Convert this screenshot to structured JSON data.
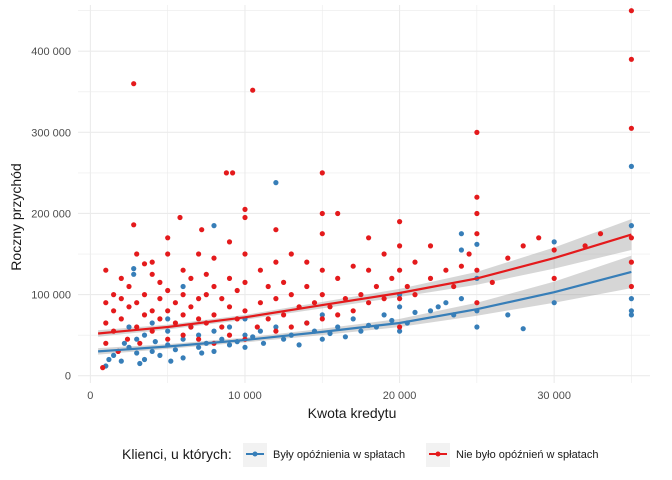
{
  "chart_data": {
    "type": "scatter",
    "xlabel": "Kwota kredytu",
    "ylabel": "Roczny przychód",
    "xlim": [
      -800,
      36200
    ],
    "ylim": [
      -9000,
      457000
    ],
    "x_ticks": [
      0,
      10000,
      20000,
      30000
    ],
    "x_tick_labels": [
      "0",
      "10 000",
      "20 000",
      "30 000"
    ],
    "y_ticks": [
      0,
      100000,
      200000,
      300000,
      400000
    ],
    "y_tick_labels": [
      "0",
      "100 000",
      "200 000",
      "300 000",
      "400 000"
    ],
    "grid": true,
    "legend": {
      "title": "Klienci, u których:",
      "position": "bottom",
      "entries": [
        "Były opóźnienia w spłatach",
        "Nie było opóźnień w spłatach"
      ]
    },
    "colors": {
      "delayed": "#377EB8",
      "no_delay": "#E41A1C",
      "band": "#999999",
      "grid": "#ebebeb"
    },
    "series": [
      {
        "name": "Były opóźnienia w spłatach",
        "color": "#377EB8",
        "points": [
          [
            1000,
            12000
          ],
          [
            1200,
            20000
          ],
          [
            1500,
            25000
          ],
          [
            1800,
            30000
          ],
          [
            2000,
            18000
          ],
          [
            2200,
            40000
          ],
          [
            2500,
            35000
          ],
          [
            2500,
            60000
          ],
          [
            2800,
            125000
          ],
          [
            2800,
            132000
          ],
          [
            3000,
            28000
          ],
          [
            3000,
            45000
          ],
          [
            3200,
            15000
          ],
          [
            3500,
            50000
          ],
          [
            3500,
            20000
          ],
          [
            4000,
            30000
          ],
          [
            4000,
            65000
          ],
          [
            4200,
            42000
          ],
          [
            4500,
            25000
          ],
          [
            5000,
            38000
          ],
          [
            5000,
            55000
          ],
          [
            5000,
            70000
          ],
          [
            5200,
            18000
          ],
          [
            5500,
            32000
          ],
          [
            6000,
            45000
          ],
          [
            6000,
            22000
          ],
          [
            6000,
            110000
          ],
          [
            6500,
            60000
          ],
          [
            7000,
            35000
          ],
          [
            7000,
            50000
          ],
          [
            7200,
            28000
          ],
          [
            7500,
            40000
          ],
          [
            8000,
            55000
          ],
          [
            8000,
            30000
          ],
          [
            8000,
            185000
          ],
          [
            8500,
            45000
          ],
          [
            9000,
            60000
          ],
          [
            9000,
            38000
          ],
          [
            9500,
            42000
          ],
          [
            10000,
            50000
          ],
          [
            10000,
            35000
          ],
          [
            10000,
            70000
          ],
          [
            10500,
            48000
          ],
          [
            11000,
            55000
          ],
          [
            11200,
            40000
          ],
          [
            12000,
            60000
          ],
          [
            12000,
            238000
          ],
          [
            12500,
            45000
          ],
          [
            13000,
            50000
          ],
          [
            13500,
            38000
          ],
          [
            14000,
            65000
          ],
          [
            14500,
            55000
          ],
          [
            15000,
            45000
          ],
          [
            15000,
            75000
          ],
          [
            15500,
            52000
          ],
          [
            16000,
            60000
          ],
          [
            16500,
            48000
          ],
          [
            17000,
            70000
          ],
          [
            17500,
            55000
          ],
          [
            18000,
            62000
          ],
          [
            18500,
            60000
          ],
          [
            19000,
            75000
          ],
          [
            19500,
            68000
          ],
          [
            20000,
            55000
          ],
          [
            20000,
            85000
          ],
          [
            20000,
            100000
          ],
          [
            20500,
            65000
          ],
          [
            21000,
            78000
          ],
          [
            22000,
            80000
          ],
          [
            22500,
            85000
          ],
          [
            23000,
            90000
          ],
          [
            23500,
            75000
          ],
          [
            24000,
            95000
          ],
          [
            24000,
            155000
          ],
          [
            24000,
            175000
          ],
          [
            25000,
            60000
          ],
          [
            25000,
            80000
          ],
          [
            25000,
            120000
          ],
          [
            25000,
            162000
          ],
          [
            27000,
            75000
          ],
          [
            28000,
            58000
          ],
          [
            30000,
            90000
          ],
          [
            30000,
            165000
          ],
          [
            35000,
            75000
          ],
          [
            35000,
            80000
          ],
          [
            35000,
            95000
          ],
          [
            35000,
            185000
          ],
          [
            35000,
            258000
          ]
        ]
      },
      {
        "name": "Nie było opóźnień w spłatach",
        "color": "#E41A1C",
        "points": [
          [
            800,
            10000
          ],
          [
            1000,
            40000
          ],
          [
            1000,
            65000
          ],
          [
            1000,
            90000
          ],
          [
            1000,
            130000
          ],
          [
            1500,
            55000
          ],
          [
            1500,
            80000
          ],
          [
            1500,
            100000
          ],
          [
            1800,
            30000
          ],
          [
            2000,
            70000
          ],
          [
            2000,
            95000
          ],
          [
            2000,
            120000
          ],
          [
            2400,
            45000
          ],
          [
            2500,
            85000
          ],
          [
            2500,
            110000
          ],
          [
            2800,
            360000
          ],
          [
            2800,
            186000
          ],
          [
            3000,
            60000
          ],
          [
            3000,
            90000
          ],
          [
            3000,
            150000
          ],
          [
            3200,
            40000
          ],
          [
            3500,
            75000
          ],
          [
            3500,
            100000
          ],
          [
            3500,
            138000
          ],
          [
            4000,
            55000
          ],
          [
            4000,
            80000
          ],
          [
            4000,
            125000
          ],
          [
            4000,
            140000
          ],
          [
            4500,
            70000
          ],
          [
            4500,
            95000
          ],
          [
            4500,
            115000
          ],
          [
            5000,
            45000
          ],
          [
            5000,
            80000
          ],
          [
            5000,
            105000
          ],
          [
            5000,
            150000
          ],
          [
            5000,
            170000
          ],
          [
            5500,
            65000
          ],
          [
            5500,
            90000
          ],
          [
            5800,
            195000
          ],
          [
            6000,
            50000
          ],
          [
            6000,
            75000
          ],
          [
            6000,
            100000
          ],
          [
            6000,
            130000
          ],
          [
            6500,
            60000
          ],
          [
            6500,
            85000
          ],
          [
            6500,
            120000
          ],
          [
            7000,
            45000
          ],
          [
            7000,
            70000
          ],
          [
            7000,
            95000
          ],
          [
            7000,
            150000
          ],
          [
            7200,
            180000
          ],
          [
            7500,
            65000
          ],
          [
            7500,
            100000
          ],
          [
            7500,
            125000
          ],
          [
            8000,
            40000
          ],
          [
            8000,
            75000
          ],
          [
            8000,
            110000
          ],
          [
            8000,
            145000
          ],
          [
            8500,
            60000
          ],
          [
            8500,
            95000
          ],
          [
            8800,
            250000
          ],
          [
            9000,
            50000
          ],
          [
            9000,
            85000
          ],
          [
            9000,
            120000
          ],
          [
            9000,
            165000
          ],
          [
            9200,
            250000
          ],
          [
            9500,
            70000
          ],
          [
            9500,
            105000
          ],
          [
            10000,
            45000
          ],
          [
            10000,
            80000
          ],
          [
            10000,
            115000
          ],
          [
            10000,
            150000
          ],
          [
            10000,
            195000
          ],
          [
            10000,
            205000
          ],
          [
            10500,
            352000
          ],
          [
            10800,
            60000
          ],
          [
            11000,
            90000
          ],
          [
            11000,
            130000
          ],
          [
            11500,
            70000
          ],
          [
            11500,
            110000
          ],
          [
            12000,
            55000
          ],
          [
            12000,
            95000
          ],
          [
            12000,
            140000
          ],
          [
            12000,
            180000
          ],
          [
            12500,
            75000
          ],
          [
            12500,
            115000
          ],
          [
            13000,
            60000
          ],
          [
            13000,
            100000
          ],
          [
            13000,
            150000
          ],
          [
            13500,
            85000
          ],
          [
            14000,
            65000
          ],
          [
            14000,
            110000
          ],
          [
            14000,
            140000
          ],
          [
            14500,
            90000
          ],
          [
            15000,
            70000
          ],
          [
            15000,
            100000
          ],
          [
            15000,
            130000
          ],
          [
            15000,
            175000
          ],
          [
            15000,
            200000
          ],
          [
            15000,
            250000
          ],
          [
            15500,
            85000
          ],
          [
            16000,
            75000
          ],
          [
            16000,
            120000
          ],
          [
            16000,
            200000
          ],
          [
            16500,
            95000
          ],
          [
            17000,
            80000
          ],
          [
            17000,
            135000
          ],
          [
            17500,
            100000
          ],
          [
            18000,
            90000
          ],
          [
            18000,
            130000
          ],
          [
            18000,
            170000
          ],
          [
            18500,
            110000
          ],
          [
            19000,
            95000
          ],
          [
            19000,
            150000
          ],
          [
            19500,
            120000
          ],
          [
            20000,
            60000
          ],
          [
            20000,
            95000
          ],
          [
            20000,
            130000
          ],
          [
            20000,
            160000
          ],
          [
            20000,
            190000
          ],
          [
            20500,
            110000
          ],
          [
            21000,
            100000
          ],
          [
            21000,
            140000
          ],
          [
            22000,
            120000
          ],
          [
            22000,
            160000
          ],
          [
            23000,
            130000
          ],
          [
            23500,
            110000
          ],
          [
            24000,
            135000
          ],
          [
            24500,
            150000
          ],
          [
            25000,
            90000
          ],
          [
            25000,
            130000
          ],
          [
            25000,
            175000
          ],
          [
            25000,
            200000
          ],
          [
            25000,
            220000
          ],
          [
            25000,
            300000
          ],
          [
            26000,
            115000
          ],
          [
            27000,
            145000
          ],
          [
            28000,
            160000
          ],
          [
            29000,
            170000
          ],
          [
            30000,
            120000
          ],
          [
            30000,
            155000
          ],
          [
            32000,
            160000
          ],
          [
            33000,
            175000
          ],
          [
            35000,
            110000
          ],
          [
            35000,
            140000
          ],
          [
            35000,
            170000
          ],
          [
            35000,
            305000
          ],
          [
            35000,
            390000
          ],
          [
            35000,
            450000
          ]
        ]
      }
    ],
    "trend_lines": [
      {
        "name": "Były opóźnienia w spłatach",
        "x": [
          500,
          5000,
          10000,
          15000,
          20000,
          25000,
          30000,
          35000
        ],
        "y": [
          30000,
          36000,
          44000,
          54000,
          65000,
          82000,
          103000,
          128000
        ],
        "lower": [
          26000,
          33000,
          41000,
          50000,
          60000,
          74000,
          90000,
          108000
        ],
        "upper": [
          34000,
          39000,
          47000,
          58000,
          70000,
          90000,
          116000,
          148000
        ]
      },
      {
        "name": "Nie było opóźnień w spłatach",
        "x": [
          500,
          5000,
          10000,
          15000,
          20000,
          25000,
          30000,
          35000
        ],
        "y": [
          52000,
          60000,
          72000,
          87000,
          102000,
          120000,
          145000,
          174000
        ],
        "lower": [
          48000,
          57000,
          69000,
          83000,
          97000,
          112000,
          132000,
          155000
        ],
        "upper": [
          56000,
          63000,
          75000,
          91000,
          107000,
          128000,
          158000,
          193000
        ]
      }
    ]
  }
}
